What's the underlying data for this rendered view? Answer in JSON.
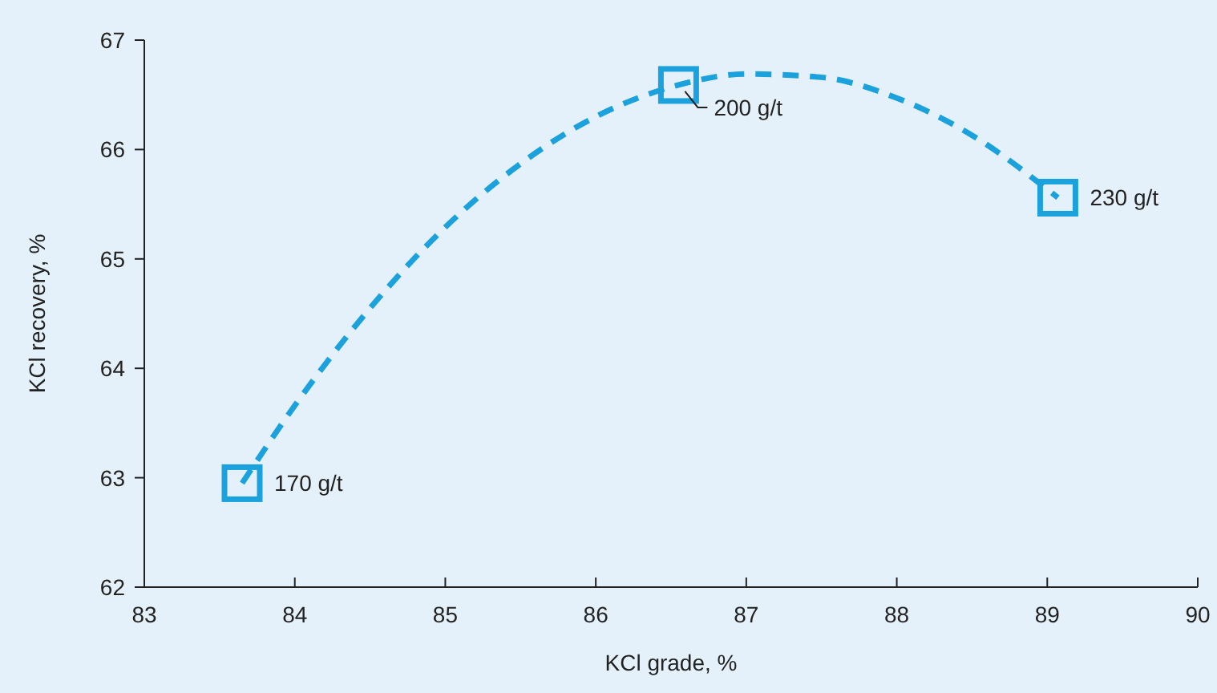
{
  "chart_data": {
    "type": "scatter",
    "xlabel": "KCl grade, %",
    "ylabel": "KCl recovery, %",
    "xlim": [
      83,
      90
    ],
    "ylim": [
      62,
      67
    ],
    "xticks": [
      83,
      84,
      85,
      86,
      87,
      88,
      89,
      90
    ],
    "yticks": [
      62,
      63,
      64,
      65,
      66,
      67
    ],
    "grid": false,
    "series": [
      {
        "type": "line",
        "color": "#1ba1dc",
        "line_style": "dashed",
        "marker": "none",
        "x": [
          83.65,
          84,
          84.5,
          85,
          85.5,
          86,
          86.55,
          87,
          87.5,
          88,
          88.5,
          89.07
        ],
        "values": [
          62.95,
          63.66,
          64.55,
          65.29,
          65.87,
          66.3,
          66.59,
          66.69,
          66.66,
          66.47,
          66.13,
          65.56
        ]
      },
      {
        "color": "#1ba1dc",
        "marker": "square",
        "x": [
          83.65,
          86.55,
          89.07
        ],
        "values": [
          62.95,
          66.59,
          65.56
        ]
      }
    ],
    "annotations": [
      {
        "text": "170 g/t",
        "x": 83.65,
        "y": 62.95
      },
      {
        "text": "200 g/t",
        "x": 86.55,
        "y": 66.59
      },
      {
        "text": "230 g/t",
        "x": 89.07,
        "y": 65.56
      }
    ]
  }
}
